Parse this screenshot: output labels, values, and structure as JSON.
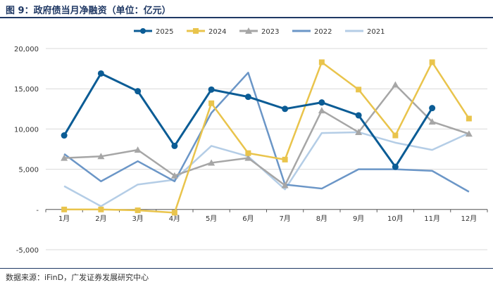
{
  "header": {
    "title": "图 9：政府债当月净融资（单位：亿元）"
  },
  "footer": {
    "source": "数据来源：iFinD，广发证券发展研究中心"
  },
  "chart_data": {
    "type": "line",
    "title": "政府债当月净融资（单位：亿元）",
    "xlabel": "",
    "ylabel": "",
    "categories": [
      "1月",
      "2月",
      "3月",
      "4月",
      "5月",
      "6月",
      "7月",
      "8月",
      "9月",
      "10月",
      "11月",
      "12月"
    ],
    "ylim": [
      -5000,
      20000
    ],
    "yticks": [
      -5000,
      0,
      5000,
      10000,
      15000,
      20000
    ],
    "ytick_labels": [
      "-5,000",
      "-",
      "5,000",
      "10,000",
      "15,000",
      "20,000"
    ],
    "legend_position": "top",
    "series": [
      {
        "name": "2025",
        "color": "#0b5c95",
        "marker": "circle",
        "values": [
          9200,
          16900,
          14700,
          7900,
          14900,
          14000,
          12500,
          13300,
          11700,
          5300,
          12600,
          null
        ]
      },
      {
        "name": "2024",
        "color": "#e9c44c",
        "marker": "square",
        "values": [
          0,
          0,
          -100,
          -400,
          13200,
          7000,
          6200,
          18300,
          14900,
          9200,
          18300,
          11300
        ]
      },
      {
        "name": "2023",
        "color": "#a6a6a6",
        "marker": "triangle",
        "values": [
          6400,
          6600,
          7400,
          4200,
          5800,
          6400,
          3000,
          12300,
          9600,
          15500,
          10900,
          9400
        ]
      },
      {
        "name": "2022",
        "color": "#6b96c7",
        "marker": "none",
        "values": [
          6900,
          3500,
          6000,
          3500,
          12000,
          17000,
          3100,
          2600,
          5000,
          5000,
          4800,
          2200
        ]
      },
      {
        "name": "2021",
        "color": "#b4cde6",
        "marker": "none",
        "values": [
          2900,
          400,
          3100,
          3700,
          7900,
          6600,
          2500,
          9500,
          9600,
          8300,
          7400,
          9500
        ]
      }
    ]
  }
}
